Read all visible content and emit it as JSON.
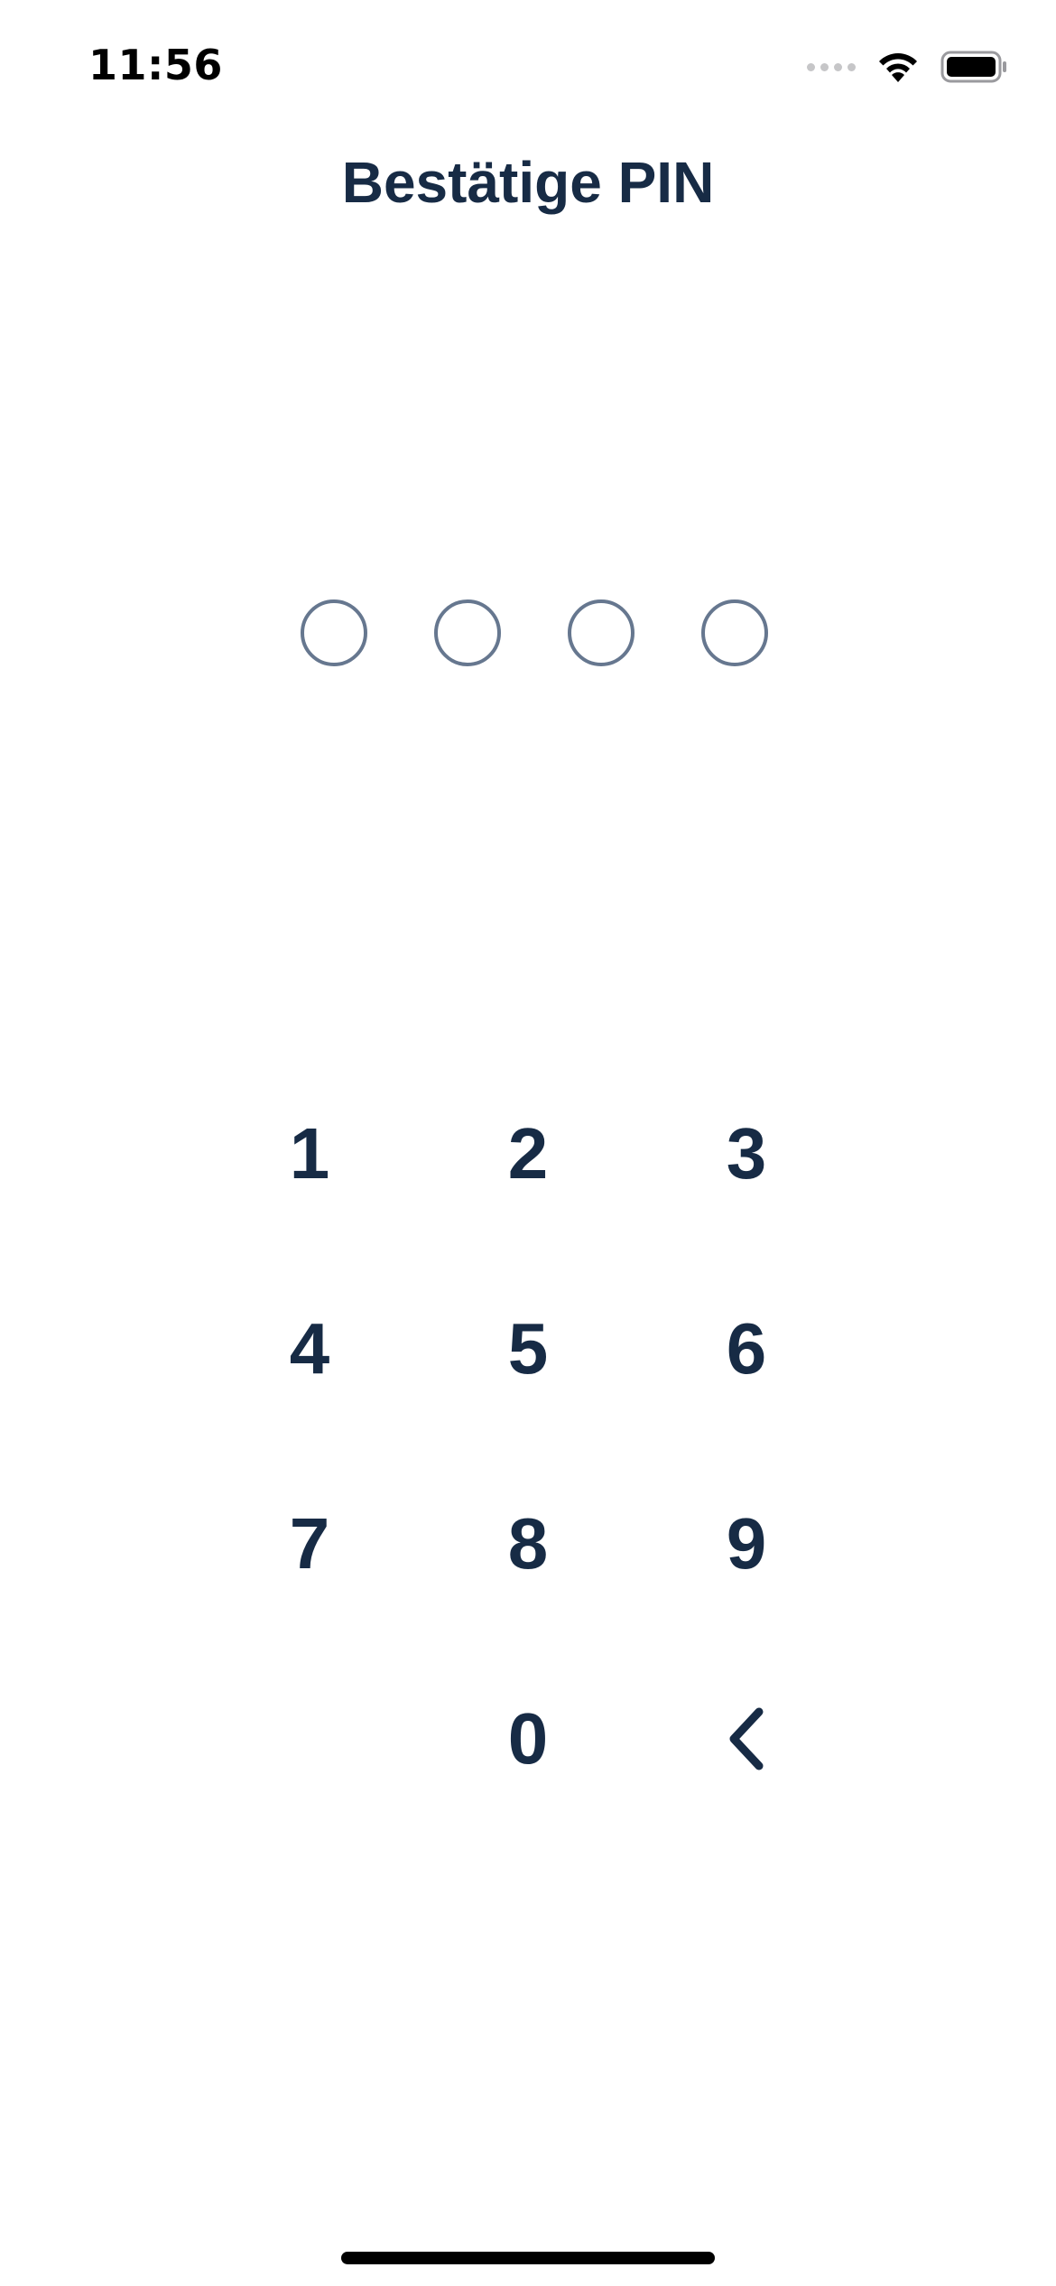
{
  "status_bar": {
    "time": "11:56",
    "signal_icon": "cellular-signal-icon",
    "wifi_icon": "wifi-icon",
    "battery_icon": "battery-icon"
  },
  "header": {
    "title": "Bestätige PIN"
  },
  "pin": {
    "length": 4,
    "entered": 0,
    "indicator_color": "#66778f"
  },
  "keypad": {
    "keys": [
      "1",
      "2",
      "3",
      "4",
      "5",
      "6",
      "7",
      "8",
      "9",
      "",
      "0"
    ],
    "backspace_icon": "chevron-left-icon"
  },
  "colors": {
    "text_primary": "#172b45",
    "background": "#ffffff"
  }
}
